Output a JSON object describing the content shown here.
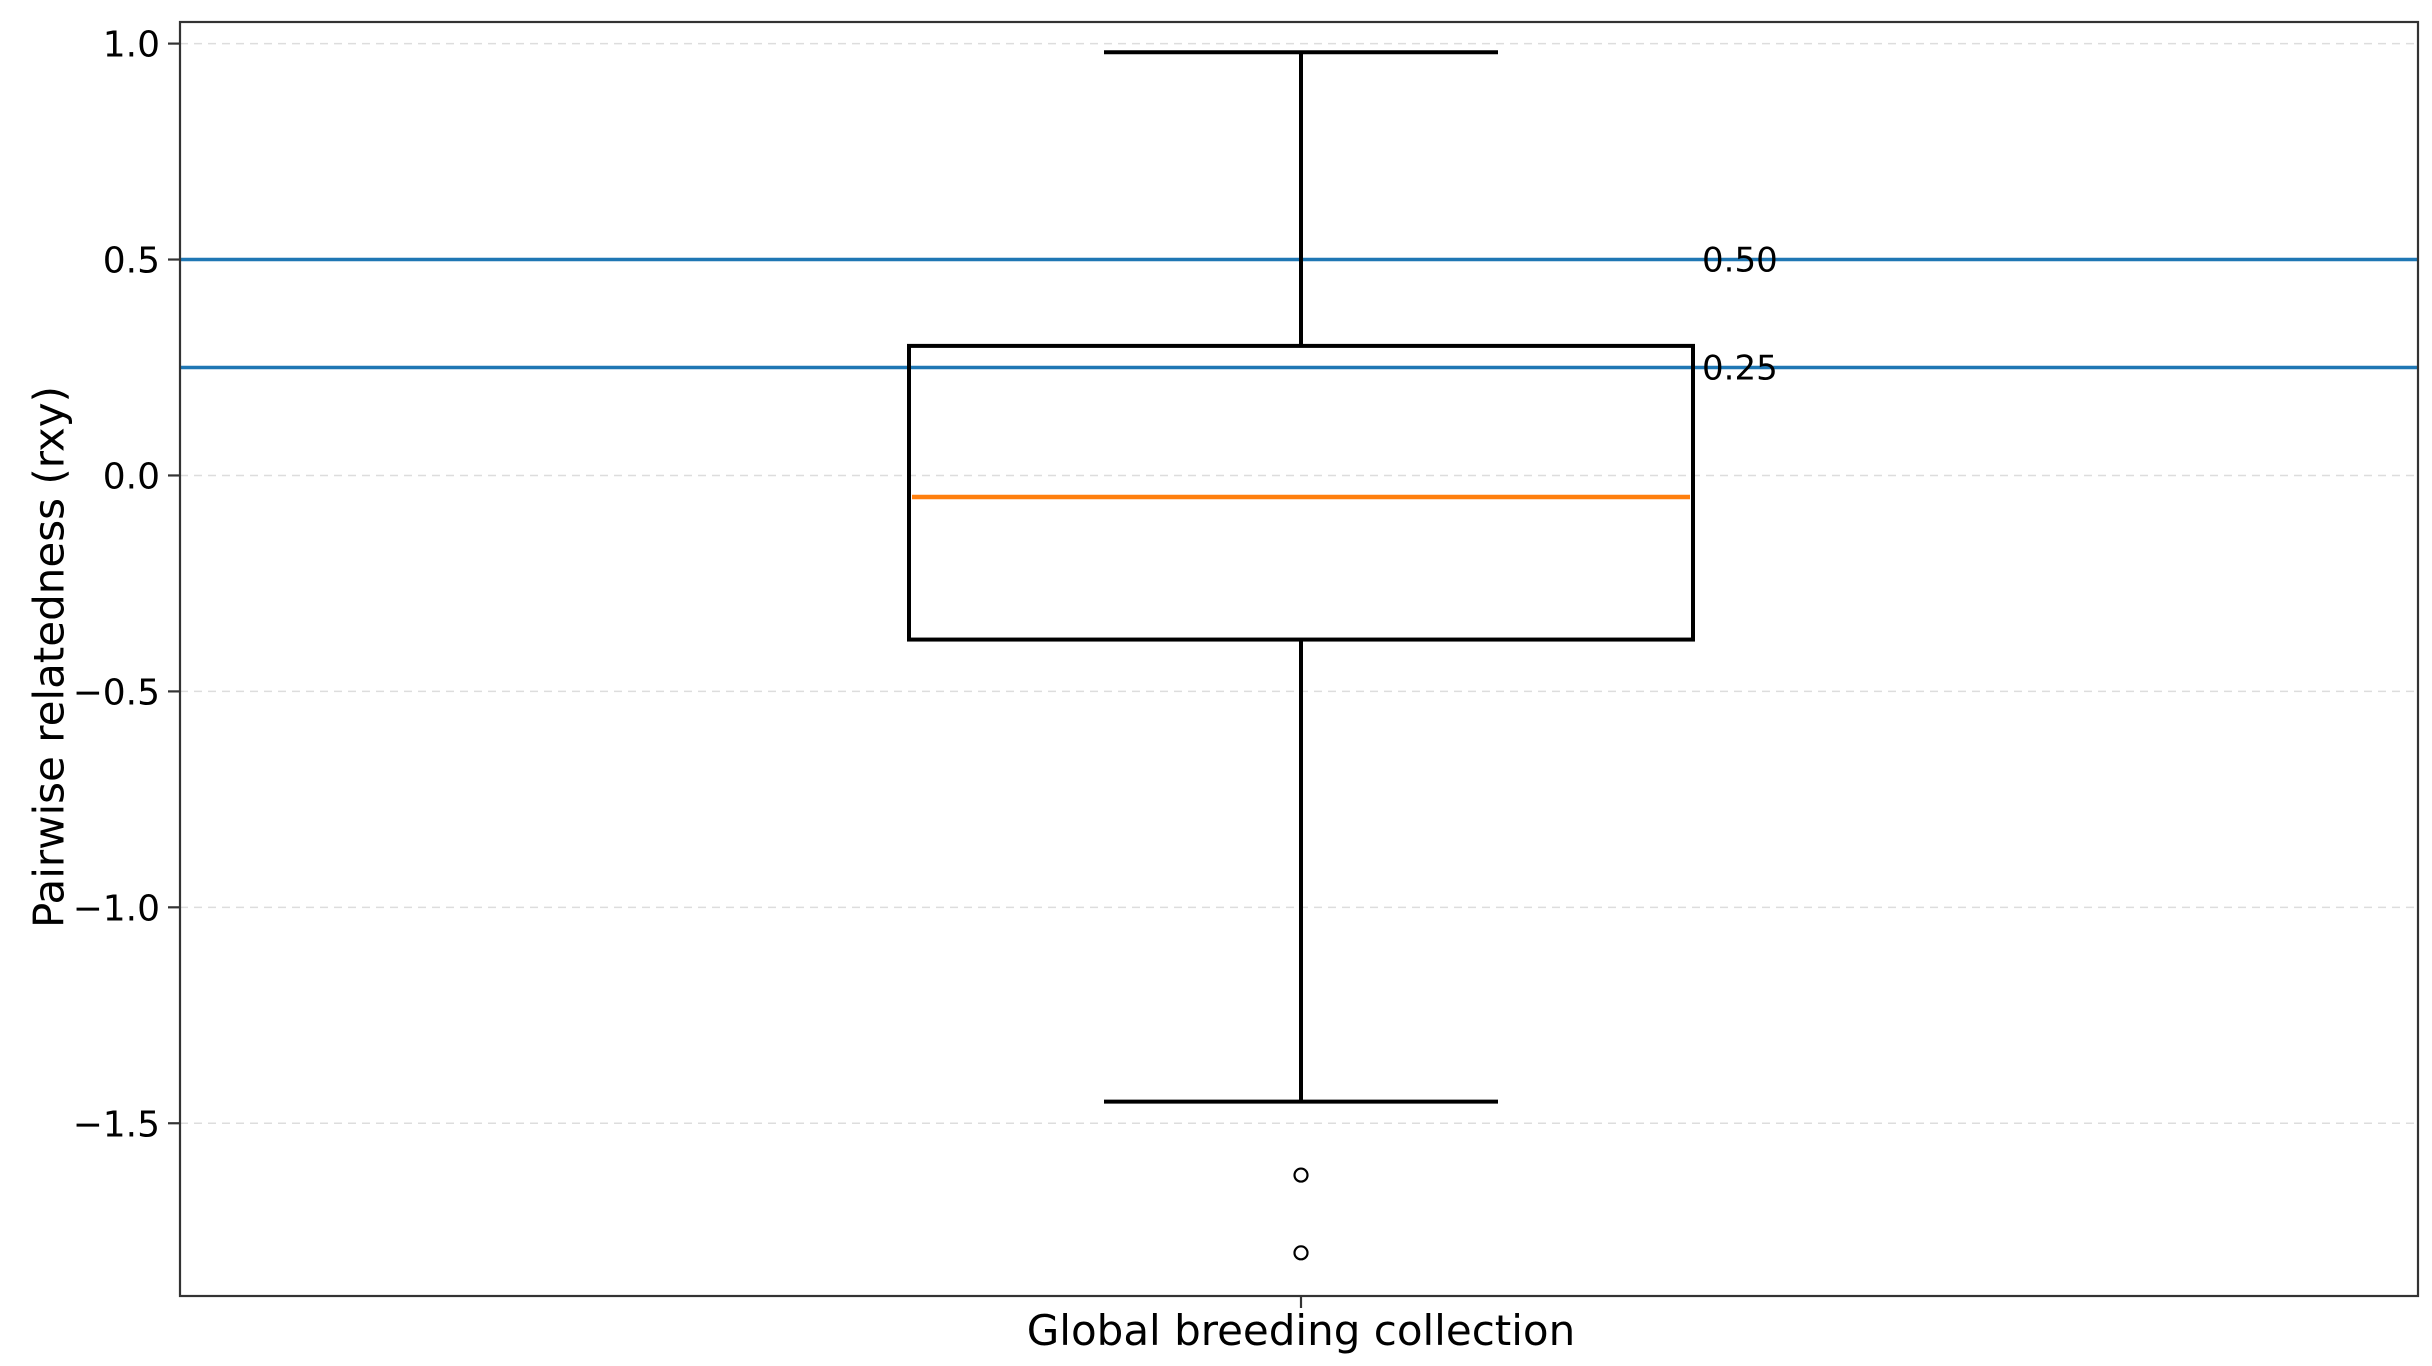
{
  "chart_data": {
    "type": "box",
    "categories": [
      "Global breeding collection"
    ],
    "xlabel": "Global breeding collection",
    "ylabel": "Pairwise relatedness (rxy)",
    "ylim": [
      -1.9,
      1.05
    ],
    "yticks": [
      1.0,
      0.5,
      0.0,
      -0.5,
      -1.0,
      -1.5
    ],
    "ytick_labels": [
      "1.0",
      "0.5",
      "0.0",
      "−0.5",
      "−1.0",
      "−1.5"
    ],
    "grid": "horizontal dashed",
    "boxes": [
      {
        "category": "Global breeding collection",
        "whisker_low": -1.45,
        "q1": -0.38,
        "median": -0.05,
        "q3": 0.3,
        "whisker_high": 0.98,
        "outliers": [
          -1.62,
          -1.8
        ]
      }
    ],
    "reference_lines": [
      {
        "value": 0.5,
        "label": "0.50",
        "color": "#1f77b4"
      },
      {
        "value": 0.25,
        "label": "0.25",
        "color": "#1f77b4"
      }
    ],
    "colors": {
      "box": "#000000",
      "median": "#ff7f0e",
      "reference": "#1f77b4",
      "grid": "#dddddd",
      "frame": "#333333"
    }
  }
}
